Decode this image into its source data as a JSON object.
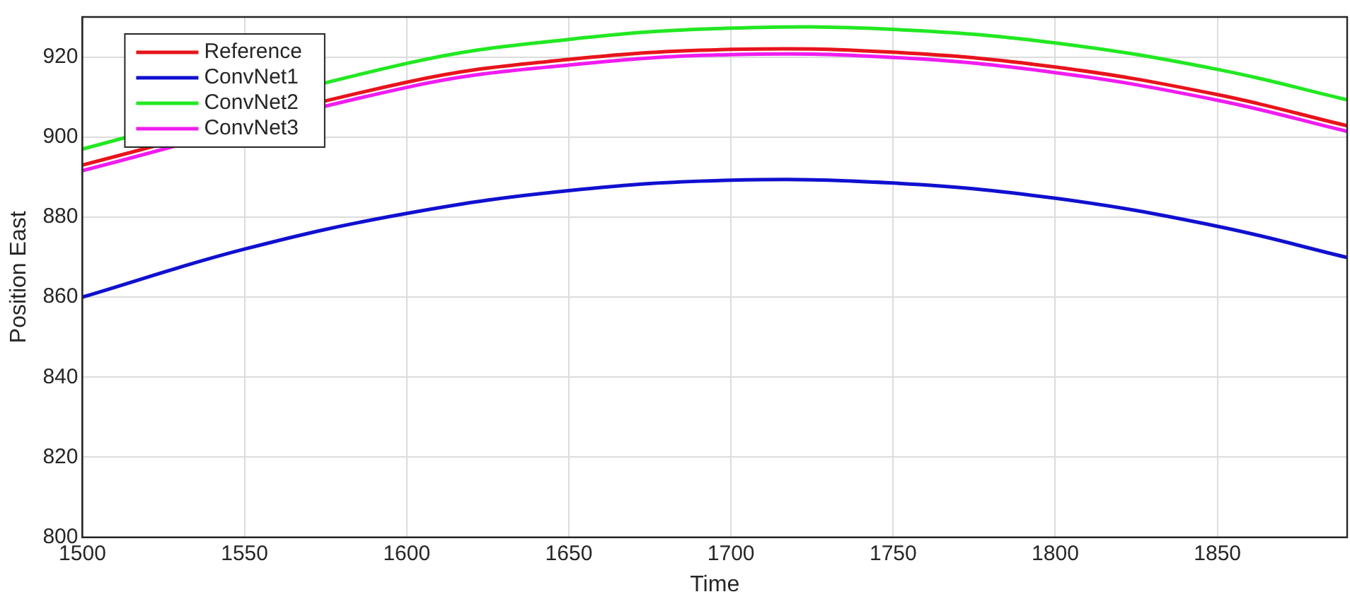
{
  "chart_data": {
    "type": "line",
    "xlabel": "Time",
    "ylabel": "Position East",
    "x": [
      1500,
      1550,
      1600,
      1650,
      1700,
      1750,
      1800,
      1850,
      1890
    ],
    "series": [
      {
        "name": "Reference",
        "color": "#e8141c",
        "values": [
          893,
          null,
          913.7,
          919.4,
          921.9,
          921.2,
          917.5,
          910.6,
          902.8
        ]
      },
      {
        "name": "ConvNet1",
        "color": "#1010d0",
        "values": [
          860,
          872,
          880.9,
          886.6,
          889.2,
          888.5,
          884.7,
          877.7,
          869.9
        ]
      },
      {
        "name": "ConvNet2",
        "color": "#22e822",
        "values": [
          897,
          null,
          918.4,
          924.4,
          927.2,
          926.9,
          923.5,
          916.9,
          909.3
        ]
      },
      {
        "name": "ConvNet3",
        "color": "#f01cf0",
        "values": [
          891.6,
          null,
          912.4,
          918,
          920.6,
          919.9,
          916.1,
          909.2,
          901.4
        ]
      }
    ],
    "xlim": [
      1500,
      1890
    ],
    "ylim": [
      800,
      930
    ],
    "xticks": [
      1500,
      1550,
      1600,
      1650,
      1700,
      1750,
      1800,
      1850
    ],
    "yticks": [
      800,
      820,
      840,
      860,
      880,
      900,
      920
    ],
    "grid": true,
    "legend": "top left",
    "marker": "none",
    "line_style": "solid"
  }
}
